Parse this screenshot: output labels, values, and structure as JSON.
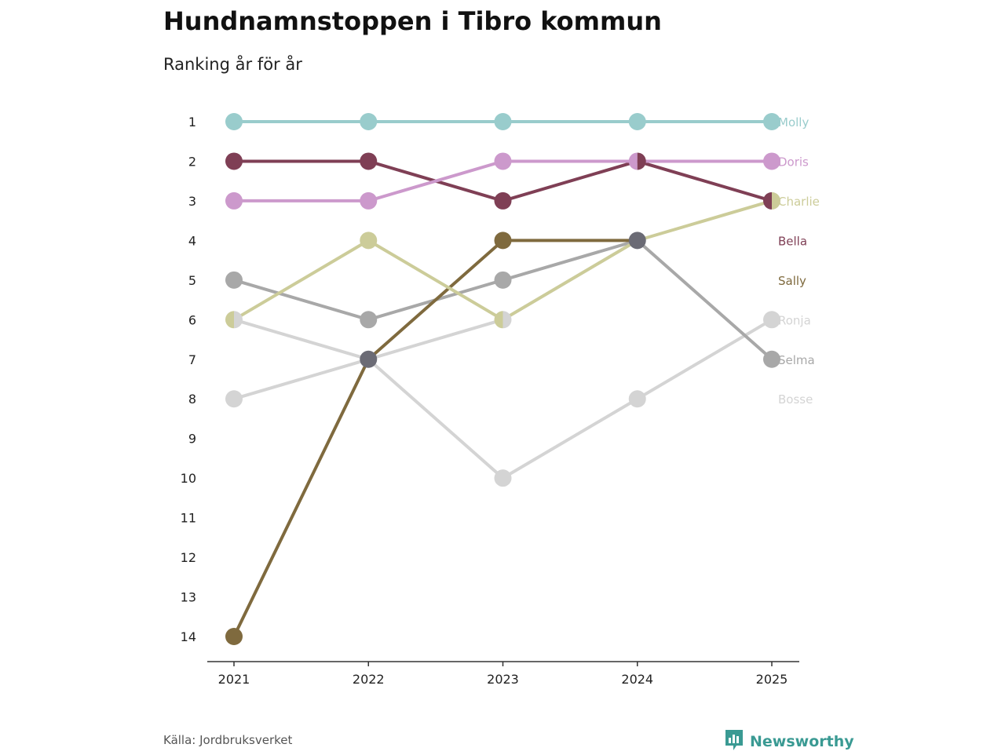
{
  "title": "Hundnamnstoppen i Tibro kommun",
  "subtitle": "Ranking år för år",
  "source": "Källa: Jordbruksverket",
  "brand": {
    "name": "Newsworthy",
    "icon": "bar-chart-icon",
    "color": "#3a9a93"
  },
  "chart_data": {
    "type": "line",
    "title": "Hundnamnstoppen i Tibro kommun",
    "subtitle": "Ranking år för år",
    "xlabel": "",
    "ylabel": "",
    "x": [
      "2021",
      "2022",
      "2023",
      "2024",
      "2025"
    ],
    "y_ticks": [
      "1",
      "2",
      "3",
      "4",
      "5",
      "6",
      "7",
      "8",
      "9",
      "10",
      "11",
      "12",
      "13",
      "14"
    ],
    "ylim": [
      1,
      14
    ],
    "y_inverted": true,
    "series": [
      {
        "name": "Bosse",
        "color": "#d4d4d4",
        "values": [
          8,
          7,
          6,
          4,
          null
        ]
      },
      {
        "name": "Ronja",
        "color": "#d4d4d4",
        "values": [
          6,
          7,
          10,
          8,
          6
        ]
      },
      {
        "name": "Selma",
        "color": "#a8a8a8",
        "values": [
          5,
          6,
          5,
          4,
          7
        ]
      },
      {
        "name": "Sally",
        "color": "#7f6a3e",
        "values": [
          14,
          7,
          4,
          4,
          null
        ]
      },
      {
        "name": "Charlie",
        "color": "#cccc99",
        "values": [
          6,
          4,
          6,
          4,
          3
        ]
      },
      {
        "name": "Bella",
        "color": "#7f3f55",
        "values": [
          2,
          2,
          3,
          2,
          3
        ]
      },
      {
        "name": "Doris",
        "color": "#cc99cc",
        "values": [
          3,
          3,
          2,
          2,
          2
        ]
      },
      {
        "name": "Molly",
        "color": "#99cccc",
        "values": [
          1,
          1,
          1,
          1,
          1
        ]
      }
    ],
    "overlap_color": "#6b6b75",
    "end_labels": [
      {
        "name": "Molly",
        "rank": 1
      },
      {
        "name": "Doris",
        "rank": 2
      },
      {
        "name": "Charlie",
        "rank": 3
      },
      {
        "name": "Bella",
        "rank": 4
      },
      {
        "name": "Sally",
        "rank": 5
      },
      {
        "name": "Ronja",
        "rank": 6
      },
      {
        "name": "Selma",
        "rank": 7
      },
      {
        "name": "Bosse",
        "rank": 8
      }
    ]
  }
}
